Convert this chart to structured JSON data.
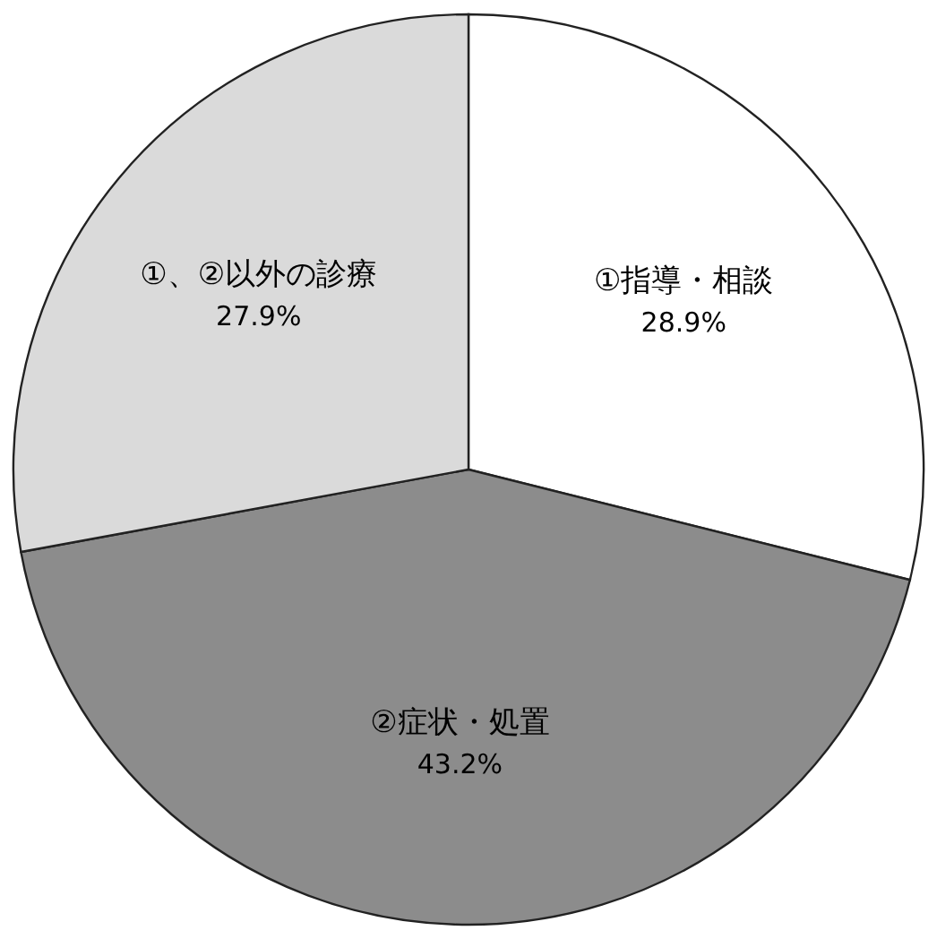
{
  "chart_data": {
    "type": "pie",
    "categories": [
      "①指導・相談",
      "②症状・処置",
      "①、②以外の診療"
    ],
    "values": [
      28.9,
      43.2,
      27.9
    ],
    "colors": [
      "#ffffff",
      "#8c8c8c",
      "#dadada"
    ],
    "value_labels": [
      "28.9%",
      "43.2%",
      "27.9%"
    ]
  }
}
